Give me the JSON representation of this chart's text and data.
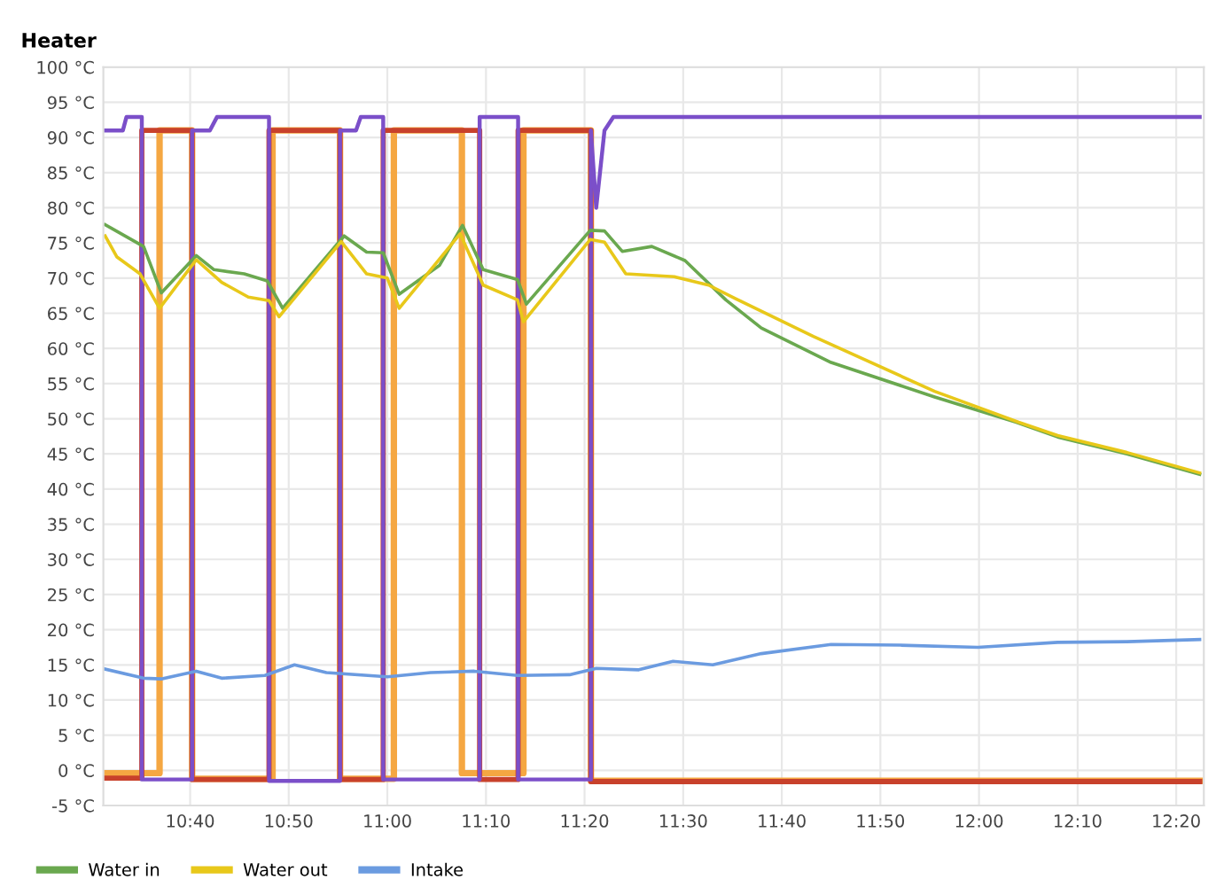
{
  "chart_data": {
    "type": "line",
    "title": "Heater",
    "xlim": [
      10.52,
      12.38
    ],
    "xticks": [
      {
        "value": 10.6667,
        "label": "10:40"
      },
      {
        "value": 10.8333,
        "label": "10:50"
      },
      {
        "value": 11,
        "label": "11:00"
      },
      {
        "value": 11.1667,
        "label": "11:10"
      },
      {
        "value": 11.3333,
        "label": "11:20"
      },
      {
        "value": 11.5,
        "label": "11:30"
      },
      {
        "value": 11.6667,
        "label": "11:40"
      },
      {
        "value": 11.8333,
        "label": "11:50"
      },
      {
        "value": 12,
        "label": "12:00"
      },
      {
        "value": 12.1667,
        "label": "12:10"
      },
      {
        "value": 12.3333,
        "label": "12:20"
      }
    ],
    "ylim": [
      -5,
      100
    ],
    "yticks": [
      {
        "value": -5,
        "label": "-5 °C"
      },
      {
        "value": 0,
        "label": "0 °C"
      },
      {
        "value": 5,
        "label": "5 °C"
      },
      {
        "value": 10,
        "label": "10 °C"
      },
      {
        "value": 15,
        "label": "15 °C"
      },
      {
        "value": 20,
        "label": "20 °C"
      },
      {
        "value": 25,
        "label": "25 °C"
      },
      {
        "value": 30,
        "label": "30 °C"
      },
      {
        "value": 35,
        "label": "35 °C"
      },
      {
        "value": 40,
        "label": "40 °C"
      },
      {
        "value": 45,
        "label": "45 °C"
      },
      {
        "value": 50,
        "label": "50 °C"
      },
      {
        "value": 55,
        "label": "55 °C"
      },
      {
        "value": 60,
        "label": "60 °C"
      },
      {
        "value": 65,
        "label": "65 °C"
      },
      {
        "value": 70,
        "label": "70 °C"
      },
      {
        "value": 75,
        "label": "75 °C"
      },
      {
        "value": 80,
        "label": "80 °C"
      },
      {
        "value": 85,
        "label": "85 °C"
      },
      {
        "value": 90,
        "label": "90 °C"
      },
      {
        "value": 95,
        "label": "95 °C"
      },
      {
        "value": 100,
        "label": "100 °C"
      }
    ],
    "grid": true,
    "legend": "bottom left",
    "marker": "none",
    "line_style": "solid",
    "series": [
      {
        "color": "#f5a742",
        "x": [
          10.523,
          10.615,
          10.615,
          10.67,
          10.67,
          10.806,
          10.806,
          10.92,
          10.92,
          11.011,
          11.011,
          11.126,
          11.126,
          11.23,
          11.23,
          11.344,
          11.344,
          12.373
        ],
        "values": [
          -0.4,
          -0.4,
          91,
          91,
          -1.2,
          -1.2,
          91,
          91,
          -1.2,
          -1.2,
          91,
          91,
          -0.4,
          -0.4,
          91,
          91,
          -1.5,
          -1.5
        ]
      },
      {
        "color": "#c8412b",
        "x": [
          10.523,
          10.585,
          10.585,
          10.67,
          10.67,
          10.8,
          10.8,
          10.92,
          10.92,
          10.993,
          10.993,
          11.156,
          11.156,
          11.221,
          11.221,
          11.344,
          11.344,
          12.373
        ],
        "values": [
          -1.1,
          -1.1,
          91,
          91,
          -1.3,
          -1.3,
          91,
          91,
          -1.3,
          -1.3,
          91,
          91,
          -1.3,
          -1.3,
          91,
          91,
          -1.6,
          -1.6
        ]
      },
      {
        "color": "#7b4fc9",
        "x": [
          10.523,
          10.553,
          10.559,
          10.582,
          10.585,
          10.585,
          10.67,
          10.67,
          10.7,
          10.712,
          10.8,
          10.8,
          10.92,
          10.92,
          10.947,
          10.955,
          10.993,
          10.993,
          11.156,
          11.156,
          11.221,
          11.221,
          11.344,
          11.344,
          11.353,
          11.367,
          11.382,
          12.373
        ],
        "values": [
          91,
          91,
          92.9,
          92.9,
          92.9,
          -1.3,
          -1.3,
          91,
          91,
          92.9,
          92.9,
          -1.5,
          -1.5,
          91,
          91,
          92.9,
          92.9,
          -1.3,
          -1.3,
          92.9,
          92.9,
          -1.3,
          -1.3,
          91,
          80,
          91,
          92.9,
          92.9
        ]
      },
      {
        "name": "Water in",
        "color": "#6aa84f",
        "x": [
          10.523,
          10.588,
          10.618,
          10.677,
          10.707,
          10.758,
          10.797,
          10.823,
          10.927,
          10.965,
          10.993,
          11.02,
          11.088,
          11.127,
          11.162,
          11.22,
          11.235,
          11.343,
          11.367,
          11.397,
          11.447,
          11.503,
          11.572,
          11.632,
          11.75,
          11.925,
          12.063,
          12.133,
          12.25,
          12.373
        ],
        "values": [
          77.6,
          74.5,
          67.9,
          73.2,
          71.2,
          70.6,
          69.6,
          65.7,
          76.0,
          73.7,
          73.6,
          67.7,
          71.8,
          77.5,
          71.2,
          69.8,
          66.3,
          76.8,
          76.7,
          73.8,
          74.5,
          72.5,
          66.9,
          62.9,
          58.0,
          53.1,
          49.5,
          47.4,
          45.0,
          42.1
        ]
      },
      {
        "name": "Water out",
        "color": "#e8c81a",
        "x": [
          10.523,
          10.543,
          10.582,
          10.615,
          10.677,
          10.72,
          10.765,
          10.8,
          10.817,
          10.922,
          10.965,
          11.0,
          11.02,
          11.123,
          11.162,
          11.22,
          11.23,
          11.343,
          11.367,
          11.403,
          11.485,
          11.543,
          11.588,
          11.72,
          11.925,
          12.067,
          12.133,
          12.25,
          12.373
        ],
        "values": [
          76.0,
          73.0,
          70.6,
          65.7,
          72.6,
          69.4,
          67.3,
          66.8,
          64.5,
          75.2,
          70.6,
          70.0,
          65.7,
          76.3,
          69.0,
          66.9,
          63.8,
          75.5,
          75.1,
          70.6,
          70.2,
          69.0,
          67.1,
          61.7,
          53.9,
          49.5,
          47.6,
          45.2,
          42.3
        ]
      },
      {
        "name": "Intake",
        "color": "#6b9be0",
        "x": [
          10.523,
          10.588,
          10.618,
          10.677,
          10.72,
          10.793,
          10.843,
          10.897,
          11.0,
          11.073,
          11.147,
          11.22,
          11.308,
          11.353,
          11.425,
          11.483,
          11.55,
          11.632,
          11.75,
          11.867,
          11.998,
          12.133,
          12.25,
          12.373
        ],
        "values": [
          14.4,
          13.1,
          13.0,
          14.1,
          13.1,
          13.5,
          15.0,
          13.9,
          13.3,
          13.9,
          14.1,
          13.5,
          13.6,
          14.5,
          14.3,
          15.5,
          15.0,
          16.6,
          17.9,
          17.8,
          17.5,
          18.2,
          18.3,
          18.6
        ]
      }
    ]
  }
}
